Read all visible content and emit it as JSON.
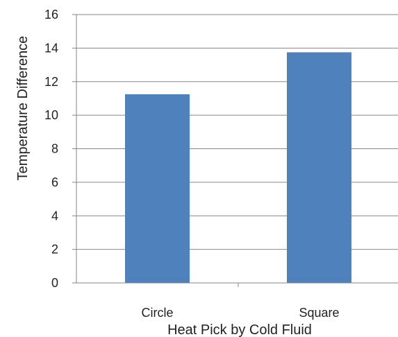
{
  "chart_data": {
    "type": "bar",
    "categories": [
      "Circle",
      "Square"
    ],
    "series": [
      {
        "values": [
          11.25,
          13.75
        ]
      }
    ],
    "xlabel": "Heat Pick by Cold Fluid",
    "ylabel": "Temperature Difference",
    "ylim": [
      0,
      16
    ],
    "yticks": [
      "0",
      "2",
      "4",
      "6",
      "8",
      "10",
      "12",
      "14",
      "16"
    ],
    "grid": true,
    "legend": "none",
    "colors": {
      "bar": "#4f81bd",
      "grid": "#868686",
      "axis": "#868686",
      "text": "#222222"
    }
  }
}
